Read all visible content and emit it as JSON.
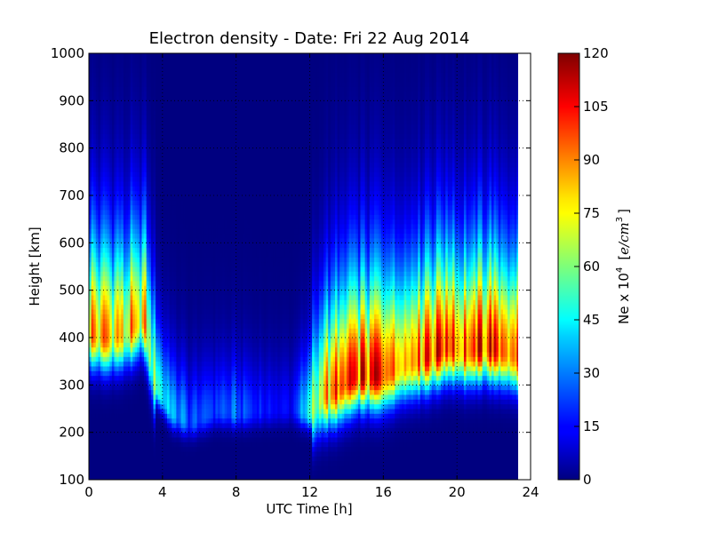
{
  "chart_data": {
    "type": "heatmap",
    "title": "Electron density - Date: Fri 22 Aug 2014",
    "xlabel": "UTC Time [h]",
    "ylabel": "Height [km]",
    "xlim": [
      0,
      24
    ],
    "ylim": [
      100,
      1000
    ],
    "x_ticks": [
      0,
      4,
      8,
      12,
      16,
      20,
      24
    ],
    "y_ticks": [
      100,
      200,
      300,
      400,
      500,
      600,
      700,
      800,
      900,
      1000
    ],
    "grid": true,
    "data_extent_x": [
      0,
      23.3
    ],
    "colormap": "jet",
    "colorbar": {
      "label_prefix": "Ne x 10",
      "label_exp": "4",
      "label_unit_open": "[",
      "label_unit_base": "e/cm",
      "label_unit_exp": "3",
      "label_unit_close": "]",
      "range": [
        0,
        120
      ],
      "ticks": [
        0,
        15,
        30,
        45,
        60,
        75,
        90,
        105,
        120
      ]
    },
    "profile_key": [
      {
        "t": 0,
        "peak_height": 410,
        "peak_value": 88
      },
      {
        "t": 1,
        "peak_height": 400,
        "peak_value": 92
      },
      {
        "t": 2,
        "peak_height": 410,
        "peak_value": 80
      },
      {
        "t": 3,
        "peak_height": 440,
        "peak_value": 82
      },
      {
        "t": 3.6,
        "peak_height": 300,
        "peak_value": 60
      },
      {
        "t": 4.5,
        "peak_height": 240,
        "peak_value": 40
      },
      {
        "t": 5.5,
        "peak_height": 220,
        "peak_value": 25
      },
      {
        "t": 7,
        "peak_height": 245,
        "peak_value": 25
      },
      {
        "t": 8,
        "peak_height": 240,
        "peak_value": 28
      },
      {
        "t": 9.5,
        "peak_height": 245,
        "peak_value": 18
      },
      {
        "t": 11,
        "peak_height": 250,
        "peak_value": 15
      },
      {
        "t": 12,
        "peak_height": 240,
        "peak_value": 50
      },
      {
        "t": 12.7,
        "peak_height": 275,
        "peak_value": 85
      },
      {
        "t": 13.5,
        "peak_height": 290,
        "peak_value": 98
      },
      {
        "t": 14.5,
        "peak_height": 320,
        "peak_value": 105
      },
      {
        "t": 16,
        "peak_height": 320,
        "peak_value": 112
      },
      {
        "t": 17,
        "peak_height": 340,
        "peak_value": 95
      },
      {
        "t": 18.5,
        "peak_height": 360,
        "peak_value": 110
      },
      {
        "t": 19.5,
        "peak_height": 380,
        "peak_value": 112
      },
      {
        "t": 20.5,
        "peak_height": 370,
        "peak_value": 95
      },
      {
        "t": 21.5,
        "peak_height": 380,
        "peak_value": 112
      },
      {
        "t": 22.5,
        "peak_height": 370,
        "peak_value": 104
      },
      {
        "t": 23.3,
        "peak_height": 360,
        "peak_value": 96
      }
    ]
  }
}
